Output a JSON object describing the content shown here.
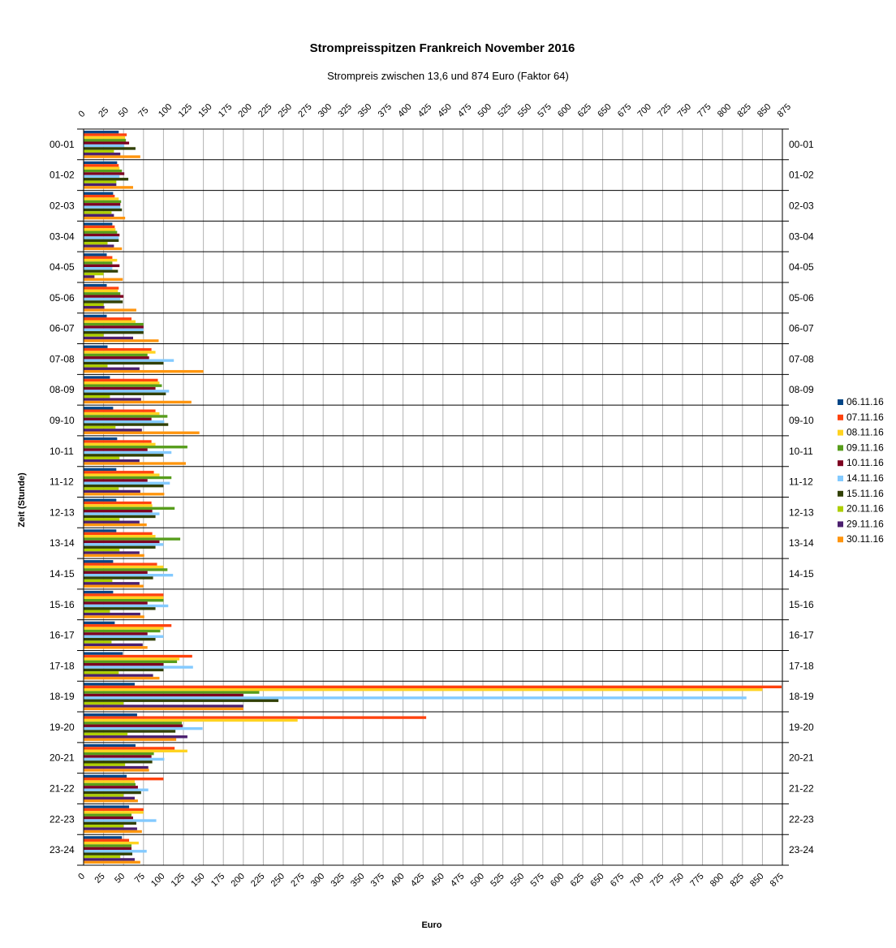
{
  "chart_data": {
    "type": "bar",
    "orientation": "horizontal",
    "title": "Strompreisspitzen Frankreich November 2016",
    "subtitle": "Strompreis zwischen 13,6 und 874 Euro (Faktor 64)",
    "xlabel": "Euro",
    "ylabel": "Zeit (Stunde)",
    "xlim": [
      0,
      875
    ],
    "xticks": [
      "0",
      "25",
      "50",
      "75",
      "100",
      "125",
      "150",
      "175",
      "200",
      "225",
      "250",
      "275",
      "300",
      "325",
      "350",
      "375",
      "400",
      "425",
      "450",
      "475",
      "500",
      "525",
      "550",
      "575",
      "600",
      "625",
      "650",
      "675",
      "700",
      "725",
      "750",
      "775",
      "800",
      "825",
      "850",
      "875"
    ],
    "legend_position": "right",
    "grid": true,
    "categories": [
      "00-01",
      "01-02",
      "02-03",
      "03-04",
      "04-05",
      "05-06",
      "06-07",
      "07-08",
      "08-09",
      "09-10",
      "10-11",
      "11-12",
      "12-13",
      "13-14",
      "14-15",
      "15-16",
      "16-17",
      "17-18",
      "18-19",
      "19-20",
      "20-21",
      "21-22",
      "22-23",
      "23-24"
    ],
    "series": [
      {
        "name": "06.11.16",
        "color": "#004586",
        "values": [
          44,
          42,
          37,
          36,
          29,
          29,
          29,
          30,
          33,
          37,
          42,
          41,
          41,
          41,
          37,
          37,
          39,
          49,
          64,
          67,
          65,
          54,
          57,
          48
        ]
      },
      {
        "name": "07.11.16",
        "color": "#ff420e",
        "values": [
          54,
          44,
          39,
          39,
          36,
          44,
          60,
          85,
          93,
          90,
          85,
          88,
          85,
          86,
          92,
          100,
          110,
          136,
          874,
          429,
          114,
          100,
          75,
          57
        ]
      },
      {
        "name": "08.11.16",
        "color": "#ffd320",
        "values": [
          52,
          45,
          44,
          40,
          42,
          43,
          65,
          90,
          95,
          95,
          90,
          95,
          86,
          90,
          100,
          100,
          100,
          120,
          850,
          268,
          130,
          64,
          75,
          69
        ]
      },
      {
        "name": "09.11.16",
        "color": "#579d1c",
        "values": [
          53,
          48,
          47,
          42,
          36,
          46,
          75,
          80,
          98,
          105,
          130,
          110,
          114,
          121,
          105,
          100,
          96,
          117,
          220,
          123,
          88,
          65,
          60,
          60
        ]
      },
      {
        "name": "10.11.16",
        "color": "#7e0021",
        "values": [
          57,
          51,
          46,
          45,
          45,
          50,
          75,
          82,
          90,
          85,
          80,
          80,
          86,
          95,
          80,
          80,
          80,
          100,
          200,
          124,
          85,
          68,
          62,
          60
        ]
      },
      {
        "name": "14.11.16",
        "color": "#83caff",
        "values": [
          51,
          45,
          46,
          44,
          36,
          46,
          75,
          113,
          107,
          101,
          110,
          108,
          95,
          100,
          112,
          106,
          100,
          137,
          830,
          149,
          101,
          81,
          91,
          79
        ]
      },
      {
        "name": "15.11.16",
        "color": "#314004",
        "values": [
          65,
          56,
          48,
          44,
          43,
          49,
          75,
          100,
          103,
          106,
          100,
          100,
          90,
          90,
          87,
          90,
          90,
          100,
          244,
          115,
          86,
          72,
          66,
          61
        ]
      },
      {
        "name": "20.11.16",
        "color": "#aecf00",
        "values": [
          38,
          41,
          35,
          30,
          25,
          25,
          25,
          30,
          33,
          40,
          45,
          44,
          45,
          45,
          36,
          33,
          35,
          44,
          50,
          55,
          52,
          50,
          50,
          46
        ]
      },
      {
        "name": "29.11.16",
        "color": "#4b1f6f",
        "values": [
          46,
          41,
          38,
          38,
          13.6,
          26,
          62,
          70,
          72,
          73,
          70,
          71,
          70,
          70,
          70,
          71,
          74,
          87,
          200,
          130,
          81,
          64,
          67,
          64
        ]
      },
      {
        "name": "30.11.16",
        "color": "#ff950e",
        "values": [
          71,
          62,
          52,
          48,
          49,
          66,
          94,
          150,
          135,
          145,
          128,
          101,
          79,
          76,
          75,
          76,
          80,
          95,
          200,
          116,
          82,
          68,
          73,
          71
        ]
      }
    ]
  }
}
